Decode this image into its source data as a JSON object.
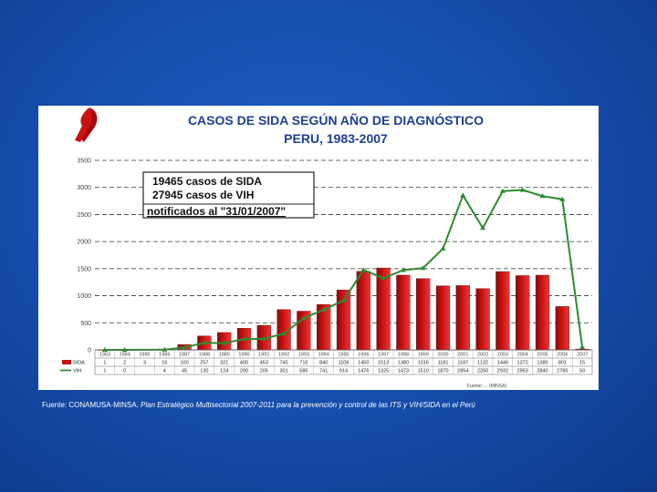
{
  "colors": {
    "background": "#1650b0",
    "bar": "#cc1111",
    "line": "#2e8b2e",
    "title": "#1f3f92",
    "ribbon": "#cc1111"
  },
  "chart_data": {
    "type": "bar",
    "title": "CASOS DE SIDA SEGÚN AÑO DE DIAGNÓSTICO",
    "subtitle": "PERU, 1983-2007",
    "ylim": [
      0,
      3500
    ],
    "yticks": [
      "0",
      "500",
      "1000",
      "1500",
      "2000",
      "2500",
      "3000",
      "3500"
    ],
    "grid": "dashed horizontal",
    "categories": [
      "1983",
      "1984",
      "1985",
      "1986",
      "1987",
      "1988",
      "1989",
      "1990",
      "1991",
      "1992",
      "1993",
      "1994",
      "1995",
      "1996",
      "1997",
      "1998",
      "1999",
      "2000",
      "2001",
      "2002",
      "2003",
      "2004",
      "2005",
      "2006",
      "2007"
    ],
    "series": [
      {
        "name": "SIDA",
        "type": "bar",
        "values": [
          1,
          2,
          3,
          16,
          100,
          257,
          321,
          400,
          453,
          745,
          715,
          840,
          1106,
          1450,
          1513,
          1380,
          1316,
          1181,
          1187,
          1132,
          1446,
          1372,
          1380,
          801,
          15
        ],
        "labels": [
          "1",
          "2",
          "3",
          "16",
          "100",
          "257",
          "321",
          "400",
          "453",
          "745",
          "715",
          "840",
          "1106",
          "1450",
          "1513",
          "1380",
          "1316",
          "1181",
          "1187",
          "1132",
          "1446",
          "1372",
          "1380",
          "801",
          "15"
        ]
      },
      {
        "name": "VIH",
        "type": "line",
        "values": [
          1,
          0,
          null,
          4,
          45,
          130,
          124,
          200,
          205,
          301,
          585,
          741,
          914,
          1476,
          1325,
          1473,
          1510,
          1870,
          2854,
          2250,
          2932,
          2953,
          2840,
          2780,
          50
        ],
        "labels": [
          "1",
          "0",
          "",
          "4",
          "45",
          "130",
          "124",
          "200",
          "205",
          "301",
          "585",
          "741",
          "914",
          "1476",
          "1325",
          "1473",
          "1510",
          "1870",
          "2854",
          "2250",
          "2932",
          "2953",
          "2840",
          "2780",
          "50"
        ]
      }
    ],
    "annotation_box": [
      "19465 casos de SIDA",
      "27945 casos de VIH",
      "notificados al \"31/01/2007\""
    ],
    "source_small": "Fuente: ... (MINSA)"
  },
  "footer": {
    "prefix": "Fuente: CONAMUSA-MINSA. ",
    "italic": "Plan Estratégico Multisectorial 2007-2011 para la prevención y control de las ITS y VIH/SIDA en el Perú"
  }
}
